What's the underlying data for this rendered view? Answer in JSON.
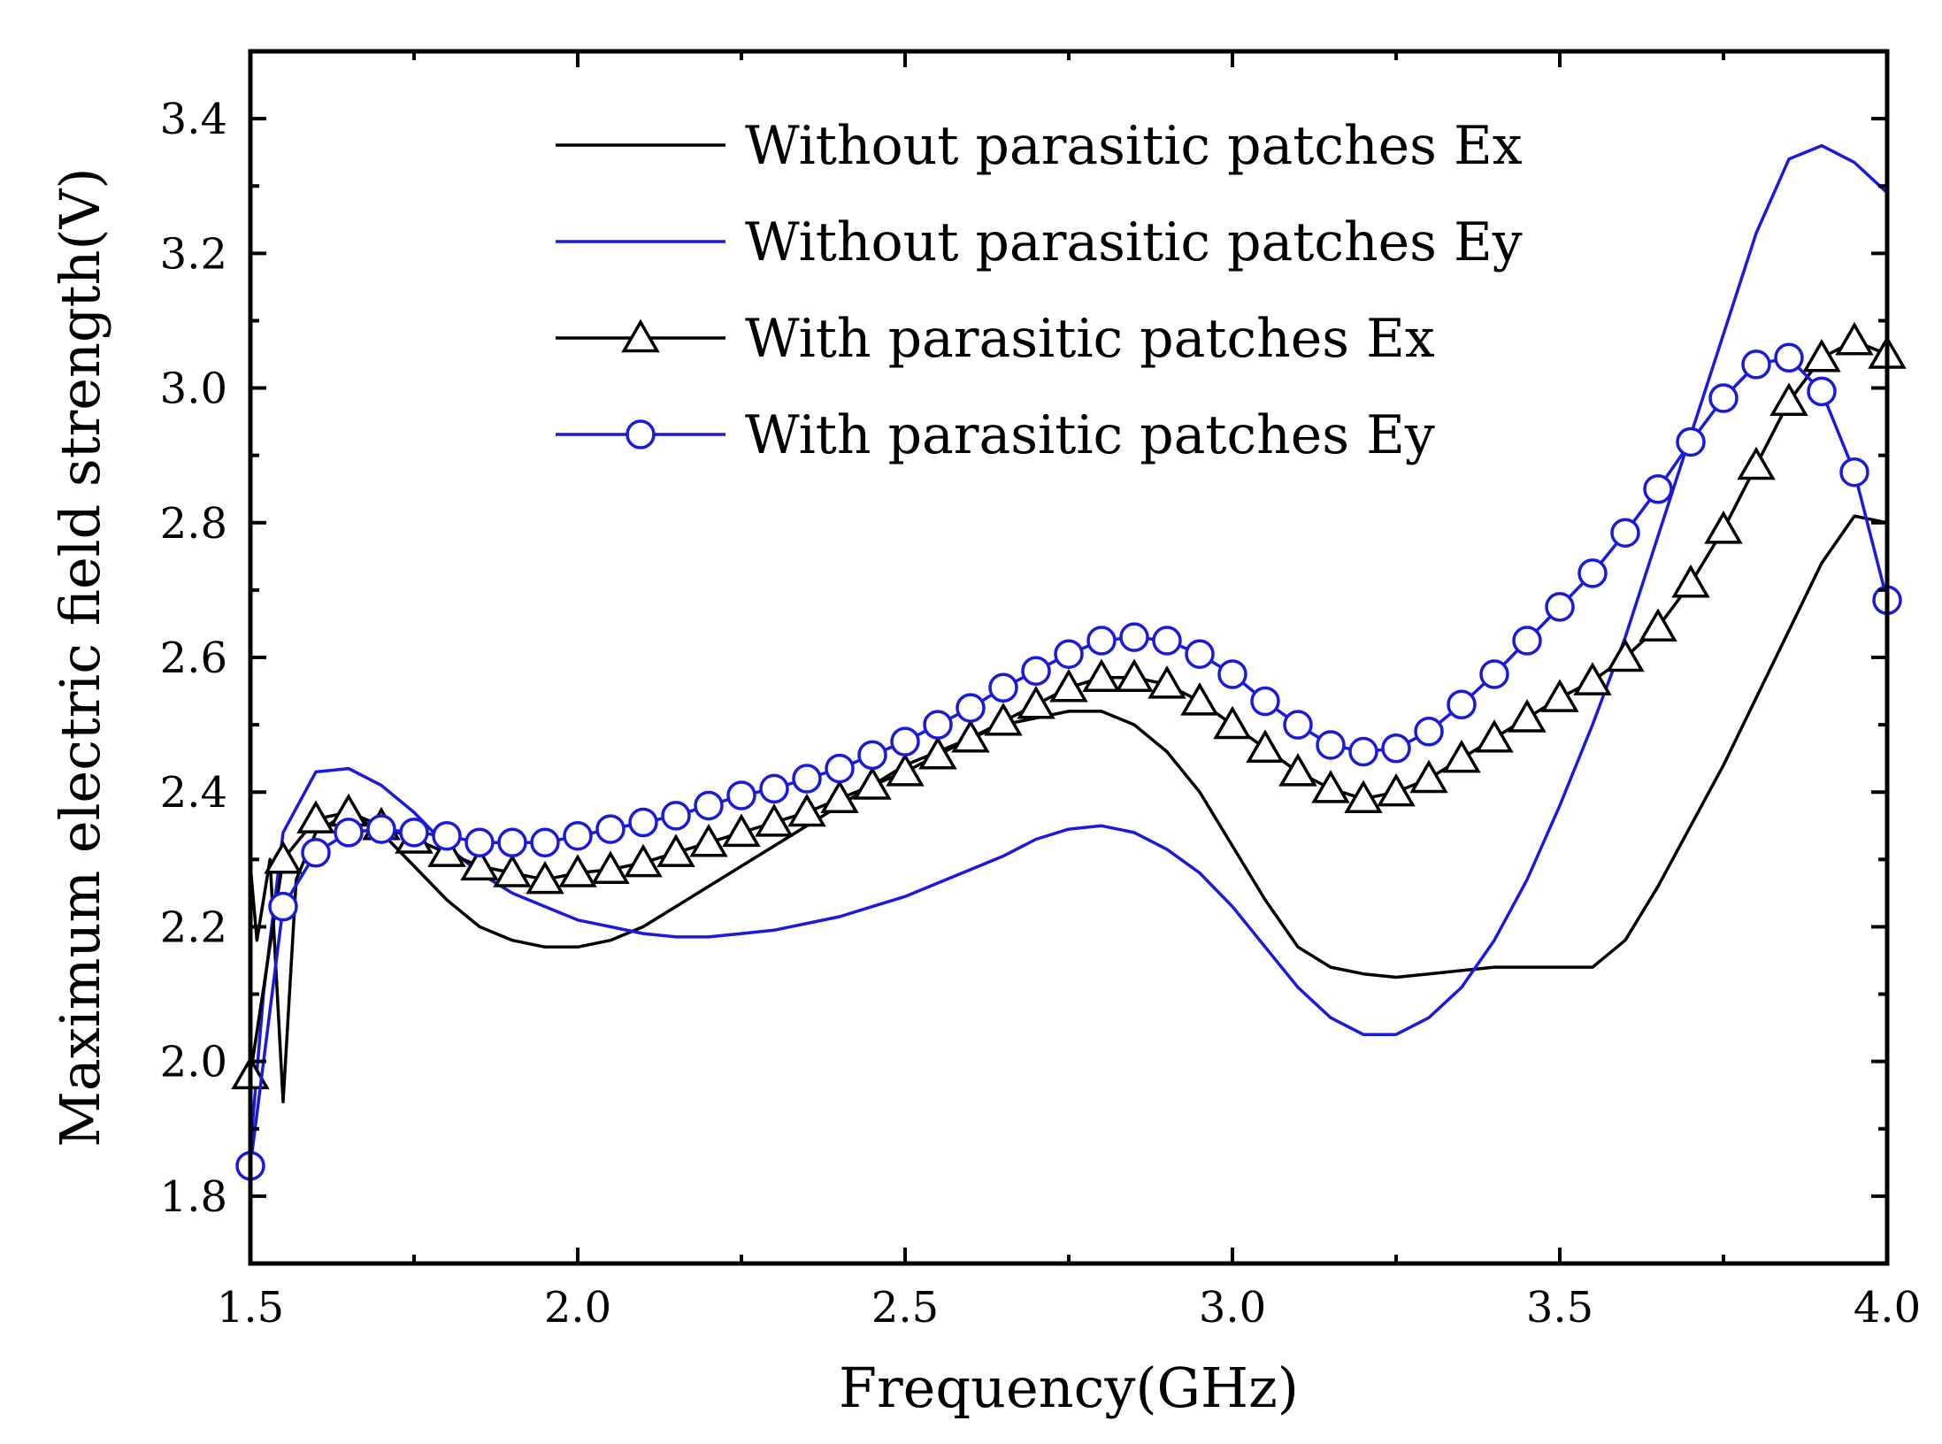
{
  "chart_data": {
    "type": "line",
    "title": "",
    "xlabel": "Frequency(GHz)",
    "ylabel": "Maximum electric field strength(V)",
    "xlim": [
      1.5,
      4.0
    ],
    "ylim": [
      1.7,
      3.5
    ],
    "xticks": [
      1.5,
      2.0,
      2.5,
      3.0,
      3.5,
      4.0
    ],
    "xtick_labels": [
      "1.5",
      "2.0",
      "2.5",
      "3.0",
      "3.5",
      "4.0"
    ],
    "yticks": [
      1.8,
      2.0,
      2.2,
      2.4,
      2.6,
      2.8,
      3.0,
      3.2,
      3.4
    ],
    "ytick_labels": [
      "1.8",
      "2.0",
      "2.2",
      "2.4",
      "2.6",
      "2.8",
      "3.0",
      "3.2",
      "3.4"
    ],
    "grid": false,
    "legend_position": "top-center",
    "series": [
      {
        "name": "Without parasitic patches Ex",
        "color": "#000000",
        "marker": "none",
        "x": [
          1.5,
          1.51,
          1.53,
          1.55,
          1.57,
          1.6,
          1.65,
          1.7,
          1.75,
          1.8,
          1.85,
          1.9,
          1.95,
          2.0,
          2.05,
          2.1,
          2.15,
          2.2,
          2.25,
          2.3,
          2.35,
          2.4,
          2.45,
          2.5,
          2.55,
          2.6,
          2.65,
          2.7,
          2.75,
          2.8,
          2.85,
          2.9,
          2.95,
          3.0,
          3.05,
          3.1,
          3.15,
          3.2,
          3.25,
          3.3,
          3.35,
          3.4,
          3.45,
          3.5,
          3.55,
          3.6,
          3.65,
          3.7,
          3.75,
          3.8,
          3.85,
          3.9,
          3.95,
          4.0
        ],
        "y": [
          2.29,
          2.18,
          2.3,
          1.94,
          2.27,
          2.34,
          2.37,
          2.34,
          2.29,
          2.24,
          2.2,
          2.18,
          2.17,
          2.17,
          2.18,
          2.2,
          2.23,
          2.26,
          2.29,
          2.32,
          2.35,
          2.38,
          2.41,
          2.44,
          2.46,
          2.48,
          2.5,
          2.51,
          2.52,
          2.52,
          2.5,
          2.46,
          2.4,
          2.32,
          2.24,
          2.17,
          2.14,
          2.13,
          2.125,
          2.13,
          2.135,
          2.14,
          2.14,
          2.14,
          2.14,
          2.18,
          2.26,
          2.35,
          2.44,
          2.54,
          2.64,
          2.74,
          2.81,
          2.8
        ]
      },
      {
        "name": "Without parasitic patches Ey",
        "color": "#1a1adc",
        "marker": "none",
        "x": [
          1.5,
          1.52,
          1.55,
          1.6,
          1.65,
          1.7,
          1.75,
          1.8,
          1.85,
          1.9,
          1.95,
          2.0,
          2.05,
          2.1,
          2.15,
          2.2,
          2.25,
          2.3,
          2.35,
          2.4,
          2.45,
          2.5,
          2.55,
          2.6,
          2.65,
          2.7,
          2.75,
          2.8,
          2.85,
          2.9,
          2.95,
          3.0,
          3.05,
          3.1,
          3.15,
          3.2,
          3.25,
          3.3,
          3.35,
          3.4,
          3.45,
          3.5,
          3.55,
          3.6,
          3.65,
          3.7,
          3.75,
          3.8,
          3.85,
          3.9,
          3.95,
          4.0
        ],
        "y": [
          1.87,
          2.1,
          2.34,
          2.43,
          2.435,
          2.41,
          2.37,
          2.32,
          2.28,
          2.25,
          2.23,
          2.21,
          2.2,
          2.19,
          2.185,
          2.185,
          2.19,
          2.195,
          2.205,
          2.215,
          2.23,
          2.245,
          2.265,
          2.285,
          2.305,
          2.33,
          2.345,
          2.35,
          2.34,
          2.315,
          2.28,
          2.23,
          2.17,
          2.11,
          2.065,
          2.04,
          2.04,
          2.065,
          2.11,
          2.18,
          2.27,
          2.38,
          2.5,
          2.63,
          2.78,
          2.93,
          3.08,
          3.23,
          3.34,
          3.36,
          3.335,
          3.29
        ]
      },
      {
        "name": "With parasitic patches Ex",
        "color": "#000000",
        "marker": "triangle",
        "x": [
          1.5,
          1.55,
          1.6,
          1.65,
          1.7,
          1.75,
          1.8,
          1.85,
          1.9,
          1.95,
          2.0,
          2.05,
          2.1,
          2.15,
          2.2,
          2.25,
          2.3,
          2.35,
          2.4,
          2.45,
          2.5,
          2.55,
          2.6,
          2.65,
          2.7,
          2.75,
          2.8,
          2.85,
          2.9,
          2.95,
          3.0,
          3.05,
          3.1,
          3.15,
          3.2,
          3.25,
          3.3,
          3.35,
          3.4,
          3.45,
          3.5,
          3.55,
          3.6,
          3.65,
          3.7,
          3.75,
          3.8,
          3.85,
          3.9,
          3.95,
          4.0
        ],
        "y": [
          1.98,
          2.3,
          2.36,
          2.37,
          2.35,
          2.33,
          2.31,
          2.29,
          2.28,
          2.27,
          2.28,
          2.285,
          2.295,
          2.31,
          2.325,
          2.34,
          2.355,
          2.37,
          2.39,
          2.41,
          2.43,
          2.455,
          2.48,
          2.505,
          2.53,
          2.555,
          2.57,
          2.57,
          2.56,
          2.535,
          2.5,
          2.465,
          2.43,
          2.405,
          2.39,
          2.4,
          2.42,
          2.45,
          2.48,
          2.51,
          2.54,
          2.565,
          2.6,
          2.645,
          2.71,
          2.79,
          2.885,
          2.98,
          3.045,
          3.07,
          3.05
        ]
      },
      {
        "name": "With parasitic patches Ey",
        "color": "#1a1adc",
        "marker": "circle",
        "x": [
          1.5,
          1.55,
          1.6,
          1.65,
          1.7,
          1.75,
          1.8,
          1.85,
          1.9,
          1.95,
          2.0,
          2.05,
          2.1,
          2.15,
          2.2,
          2.25,
          2.3,
          2.35,
          2.4,
          2.45,
          2.5,
          2.55,
          2.6,
          2.65,
          2.7,
          2.75,
          2.8,
          2.85,
          2.9,
          2.95,
          3.0,
          3.05,
          3.1,
          3.15,
          3.2,
          3.25,
          3.3,
          3.35,
          3.4,
          3.45,
          3.5,
          3.55,
          3.6,
          3.65,
          3.7,
          3.75,
          3.8,
          3.85,
          3.9,
          3.95,
          4.0
        ],
        "y": [
          1.845,
          2.23,
          2.31,
          2.34,
          2.345,
          2.34,
          2.335,
          2.325,
          2.325,
          2.325,
          2.335,
          2.345,
          2.355,
          2.365,
          2.38,
          2.395,
          2.405,
          2.42,
          2.435,
          2.455,
          2.475,
          2.5,
          2.525,
          2.555,
          2.58,
          2.605,
          2.625,
          2.63,
          2.625,
          2.605,
          2.575,
          2.535,
          2.5,
          2.47,
          2.46,
          2.465,
          2.49,
          2.53,
          2.575,
          2.625,
          2.675,
          2.725,
          2.785,
          2.85,
          2.92,
          2.985,
          3.035,
          3.045,
          2.995,
          2.875,
          2.685
        ]
      }
    ]
  }
}
